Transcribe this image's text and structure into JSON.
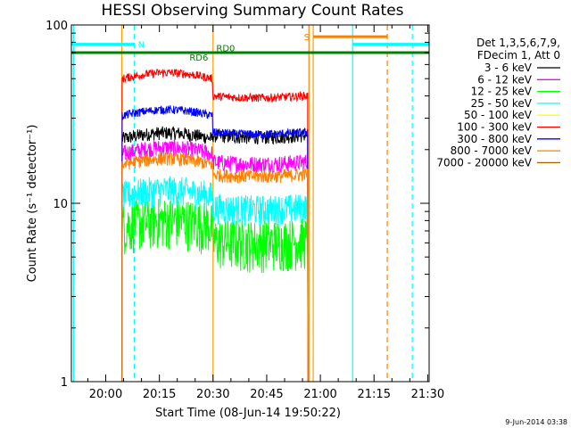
{
  "chart_data": {
    "type": "line",
    "title": "HESSI Observing Summary Count Rates",
    "xlabel": "Start Time (08-Jun-14 19:50:22)",
    "ylabel": "Count Rate (s⁻¹ detector⁻¹)",
    "yscale": "log",
    "ylim": [
      1,
      100
    ],
    "xlim_minutes_after_start": [
      0,
      100
    ],
    "x_ticks": [
      {
        "label": "20:00",
        "min": 9.6
      },
      {
        "label": "20:15",
        "min": 24.6
      },
      {
        "label": "20:30",
        "min": 39.6
      },
      {
        "label": "20:45",
        "min": 54.6
      },
      {
        "label": "21:00",
        "min": 69.6
      },
      {
        "label": "21:15",
        "min": 84.6
      },
      {
        "label": "21:30",
        "min": 99.6
      }
    ],
    "y_ticks": [
      {
        "label": "1",
        "value": 1
      },
      {
        "label": "10",
        "value": 10
      },
      {
        "label": "100",
        "value": 100
      }
    ],
    "legend_header": [
      "Det 1,3,5,6,7,9,",
      "FDecim 1, Att 0"
    ],
    "legend_position": "right",
    "series": [
      {
        "name": "3 - 6 keV",
        "color": "#000000",
        "level1": 23,
        "level2": 24,
        "noise": 0.04
      },
      {
        "name": "6 - 12 keV",
        "color": "#ff00ff",
        "level1": 19,
        "level2": 17,
        "noise": 0.05
      },
      {
        "name": "12 - 25 keV",
        "color": "#00ff00",
        "level1": 7.5,
        "level2": 6.2,
        "noise": 0.15
      },
      {
        "name": "25 - 50 keV",
        "color": "#00ffff",
        "level1": 11,
        "level2": 9.5,
        "noise": 0.09
      },
      {
        "name": "50 - 100 keV",
        "color": "#ffff00",
        "level1": 0,
        "level2": 0,
        "noise": 0
      },
      {
        "name": "100 - 300 keV",
        "color": "#ff0000",
        "level1": 50,
        "level2": 40,
        "noise": 0.025
      },
      {
        "name": "300 - 800 keV",
        "color": "#0000ff",
        "level1": 31,
        "level2": 25,
        "noise": 0.025
      },
      {
        "name": "800 - 7000 keV",
        "color": "#ff8000",
        "level1": 16.5,
        "level2": 14.5,
        "noise": 0.04
      },
      {
        "name": "7000 - 20000 keV",
        "color": "#b06000",
        "level1": 0,
        "level2": 0,
        "noise": 0
      }
    ],
    "data_interval_min": [
      14.2,
      66.1
    ],
    "segment_break_min": 39.5,
    "vertical_markers": [
      {
        "min": 0.6,
        "color": "#00ffff",
        "dash": false
      },
      {
        "min": 17.6,
        "color": "#00ffff",
        "dash": true
      },
      {
        "min": 14.1,
        "color": "#ffa000",
        "dash": false
      },
      {
        "min": 39.6,
        "color": "#ffa000",
        "dash": false
      },
      {
        "min": 66.4,
        "color": "#ff8000",
        "dash": false
      },
      {
        "min": 67.6,
        "color": "#ffa000",
        "dash": false
      },
      {
        "min": 78.6,
        "color": "#00ffff",
        "dash": false
      },
      {
        "min": 88.3,
        "color": "#ff8000",
        "dash": true
      },
      {
        "min": 95.3,
        "color": "#00ffff",
        "dash": true
      }
    ],
    "flag_bars": [
      {
        "label": "N",
        "color": "#00ffff",
        "start_min": 0,
        "end_min": 17.6,
        "value": 78,
        "label_side": "right"
      },
      {
        "label": "",
        "color": "#00ffff",
        "start_min": 78.6,
        "end_min": 100,
        "value": 78,
        "label_side": "none"
      },
      {
        "label": "S",
        "color": "#ff8000",
        "start_min": 67.6,
        "end_min": 88.3,
        "value": 86,
        "label_side": "left"
      },
      {
        "label": "RD0",
        "color": "#008000",
        "start_min": 0,
        "end_min": 100,
        "value": 70,
        "label_side": "none"
      }
    ],
    "flag_annotations": [
      {
        "text": "RD0",
        "color": "#008000",
        "min": 40.5,
        "value": 71
      },
      {
        "text": "RD6",
        "color": "#008000",
        "min": 33.0,
        "value": 63
      }
    ],
    "date_stamp": "9-Jun-2014 03:38"
  }
}
